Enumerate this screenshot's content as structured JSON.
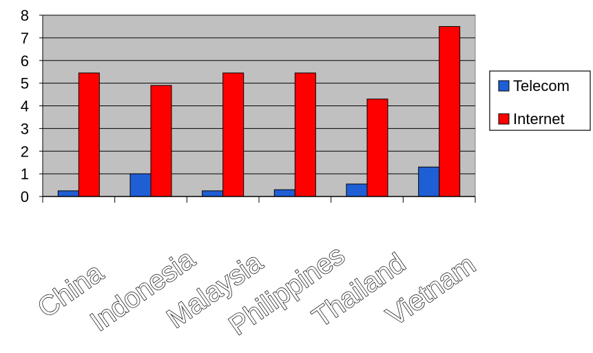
{
  "chart_data": {
    "type": "bar",
    "categories": [
      "China",
      "Indonesia",
      "Malaysia",
      "Philippines",
      "Thailand",
      "Vietnam"
    ],
    "series": [
      {
        "name": "Telecom",
        "color": "#1f5fd6",
        "values": [
          0.25,
          1.0,
          0.25,
          0.3,
          0.55,
          1.3
        ]
      },
      {
        "name": "Internet",
        "color": "#ff0000",
        "values": [
          5.45,
          4.9,
          5.45,
          5.45,
          4.3,
          7.5
        ]
      }
    ],
    "ylim": [
      0,
      8
    ],
    "yticks": [
      "0",
      "1",
      "2",
      "3",
      "4",
      "5",
      "6",
      "7",
      "8"
    ],
    "grid": true,
    "plot_background": "#c0c0c0",
    "legend_position": "right"
  }
}
